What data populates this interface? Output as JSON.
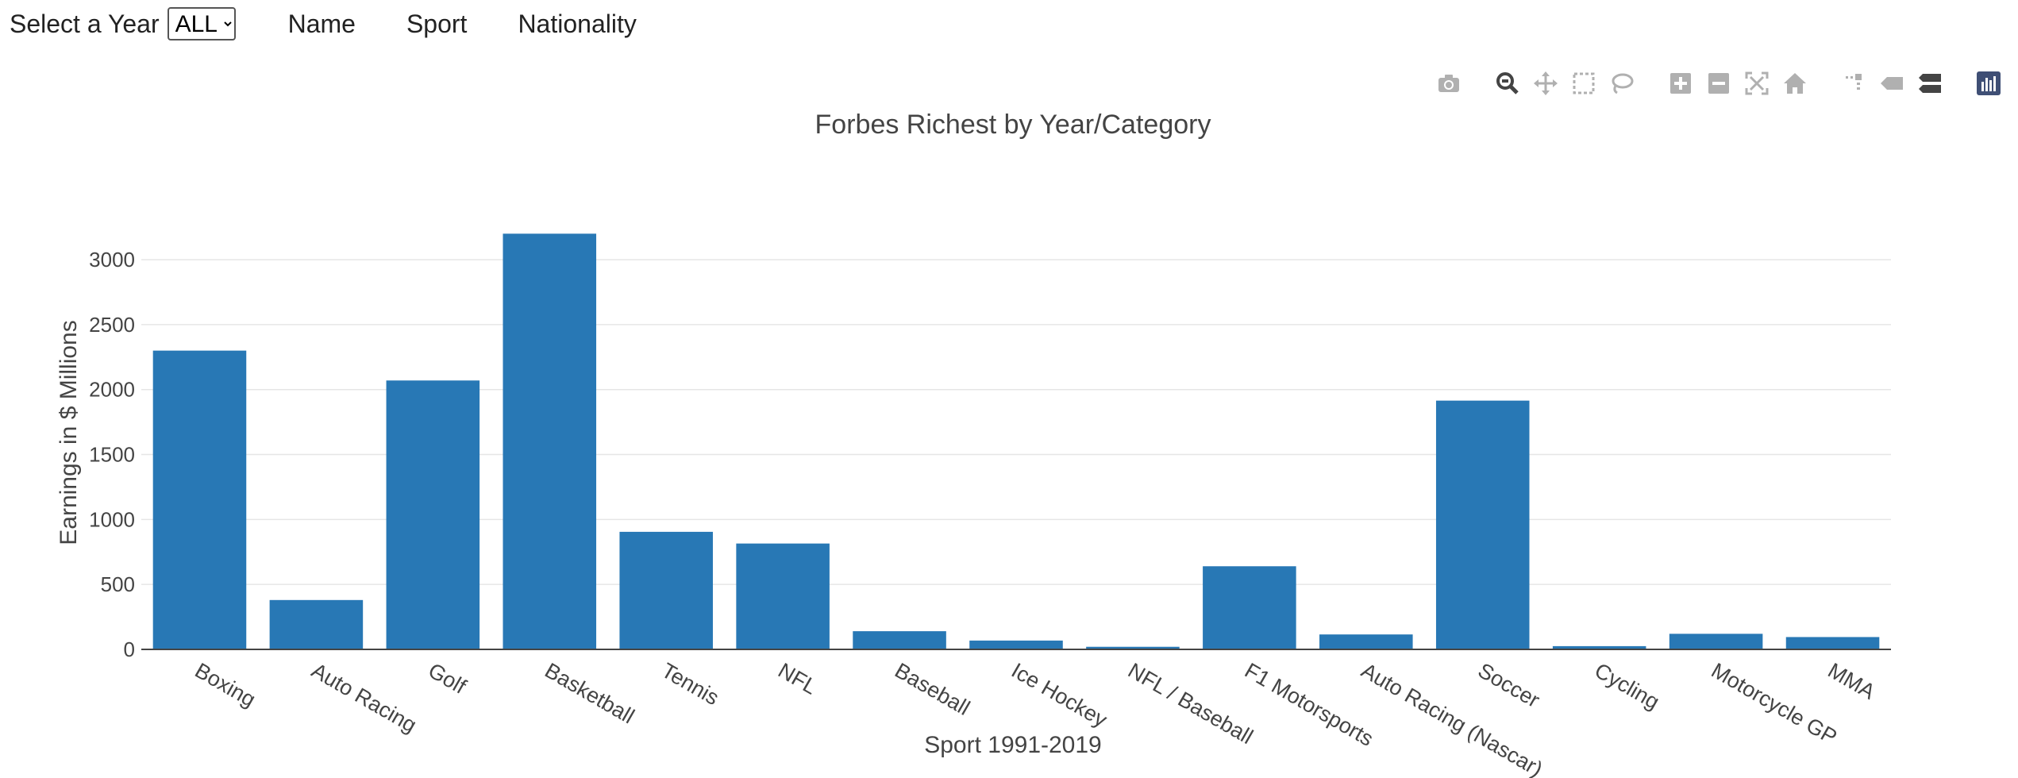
{
  "controls": {
    "year_label": "Select a Year",
    "year_selected": "ALL",
    "links": [
      "Name",
      "Sport",
      "Nationality"
    ]
  },
  "modebar": {
    "icons": [
      "camera-icon",
      "zoom-icon",
      "pan-icon",
      "box-select-icon",
      "lasso-icon",
      "zoom-in-icon",
      "zoom-out-icon",
      "autoscale-icon",
      "reset-axes-icon",
      "spike-lines-icon",
      "hover-closest-icon",
      "hover-compare-icon",
      "plotly-logo-icon"
    ]
  },
  "colors": {
    "bar": "#2878b5",
    "grid": "#e6e6e6",
    "axis_text": "#444444",
    "modebar_icon": "#b0b0b0",
    "modebar_active": "#444444"
  },
  "chart_data": {
    "type": "bar",
    "title": "Forbes Richest by Year/Category",
    "xlabel": "Sport 1991-2019",
    "ylabel": "Earnings in $ Millions",
    "ylim": [
      0,
      3300
    ],
    "yticks": [
      0,
      500,
      1000,
      1500,
      2000,
      2500,
      3000
    ],
    "grid": true,
    "categories": [
      "Boxing",
      "Auto Racing",
      "Golf",
      "Basketball",
      "Tennis",
      "NFL",
      "Baseball",
      "Ice Hockey",
      "NFL / Baseball",
      "F1 Motorsports",
      "Auto Racing (Nascar)",
      "Soccer",
      "Cycling",
      "Motorcycle GP",
      "MMA"
    ],
    "values": [
      2300,
      380,
      2070,
      3200,
      905,
      815,
      140,
      68,
      20,
      640,
      115,
      1915,
      25,
      120,
      95
    ]
  }
}
